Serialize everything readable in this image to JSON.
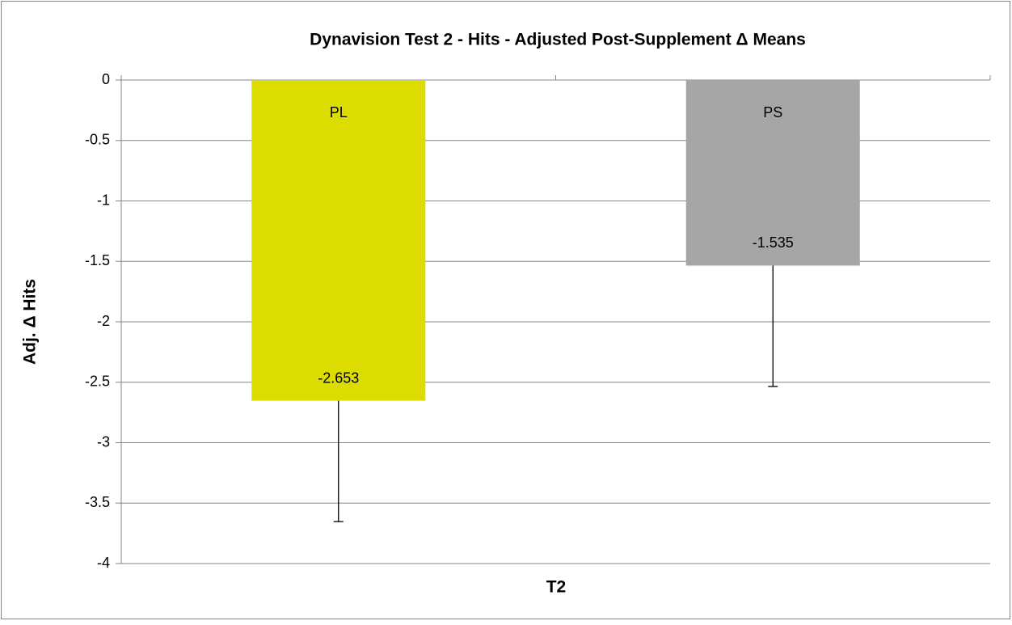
{
  "chart_data": {
    "type": "bar",
    "title": "Dynavision Test 2 - Hits - Adjusted Post-Supplement Δ Means",
    "ylabel": "Adj. Δ Hits",
    "xlabel": "T2",
    "series": [
      {
        "name": "PL",
        "color": "#dcdc00",
        "values": [
          -2.653
        ],
        "errors": [
          1.0
        ]
      },
      {
        "name": "PS",
        "color": "#a6a6a6",
        "values": [
          -1.535
        ],
        "errors": [
          1.0
        ]
      }
    ],
    "ylim": [
      -4,
      0
    ],
    "yticks": [
      0,
      -0.5,
      -1,
      -1.5,
      -2,
      -2.5,
      -3,
      -3.5,
      -4
    ],
    "grid": true
  }
}
